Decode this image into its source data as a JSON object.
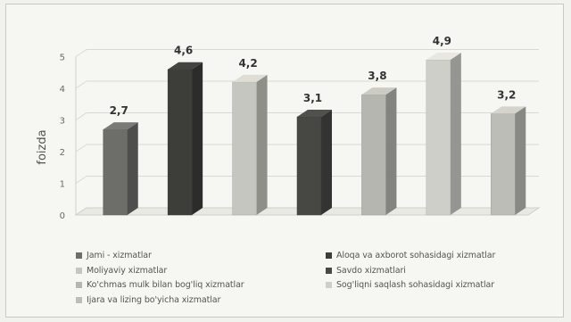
{
  "chart_data": {
    "type": "bar",
    "title": "",
    "xlabel": "",
    "ylabel": "foizda",
    "ylim": [
      0,
      5
    ],
    "yticks": [
      0,
      1,
      2,
      3,
      4,
      5
    ],
    "grid": true,
    "legend_position": "bottom",
    "series": [
      {
        "name": "Jami - xizmatlar",
        "value": 2.7,
        "label": "2,7",
        "color": "#6d6d69"
      },
      {
        "name": "Aloqa va axborot xizmatlari",
        "value": 4.6,
        "label": "4,6",
        "color": "#3d3d3a"
      },
      {
        "name": "Moliyaviy xizmatlar",
        "value": 4.2,
        "label": "4,2",
        "color": "#c6c6c0"
      },
      {
        "name": "Savdo xizmatlari",
        "value": 3.1,
        "label": "3,1",
        "color": "#474744"
      },
      {
        "name": "Ko'chmas mulk bilan bog'liq xizmatlar",
        "value": 3.8,
        "label": "3,8",
        "color": "#b6b6b0"
      },
      {
        "name": "Sog'liqni saqlash sohasidagi xizmatlar",
        "value": 4.9,
        "label": "4,9",
        "color": "#cfcfc9"
      },
      {
        "name": "Ijara va lizing bo'yicha xizmatlar",
        "value": 3.2,
        "label": "3,2",
        "color": "#bdbdb7"
      }
    ],
    "legend": [
      {
        "label": "Jami - xizmatlar",
        "color": "#6d6d69"
      },
      {
        "label": "Aloqa va axborot sohasidagi xizmatlar",
        "color": "#3d3d3a"
      },
      {
        "label": "Moliyaviy xizmatlar",
        "color": "#c6c6c0"
      },
      {
        "label": "Savdo xizmatlari",
        "color": "#474744"
      },
      {
        "label": "Ko'chmas mulk bilan bog'liq xizmatlar",
        "color": "#b6b6b0"
      },
      {
        "label": "Sog'liqni saqlash sohasidagi xizmatlar",
        "color": "#cfcfc9"
      },
      {
        "label": "Ijara va lizing bo'yicha xizmatlar",
        "color": "#bdbdb7"
      }
    ]
  }
}
